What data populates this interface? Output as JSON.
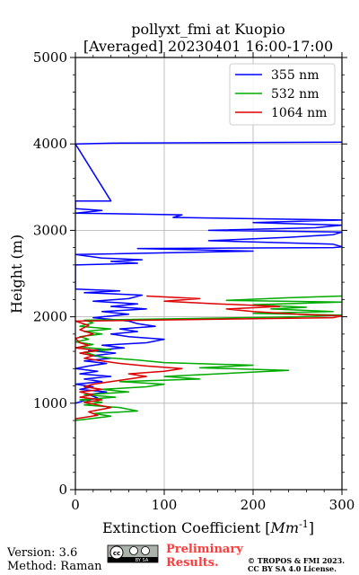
{
  "chart_data": {
    "type": "line",
    "title": "pollyxt_fmi at Kuopio",
    "subtitle": "[Averaged] 20230401 16:00-17:00",
    "xlabel": "Extinction Coefficient [",
    "xlabel_unit": "Mm",
    "xlabel_exp": "-1",
    "xlabel_end": "]",
    "ylabel": "Height (m)",
    "xlim": [
      0,
      300
    ],
    "ylim": [
      0,
      5000
    ],
    "x_ticks": [
      0,
      100,
      200,
      300
    ],
    "x_tick_labels": [
      "0",
      "100",
      "200",
      "300"
    ],
    "y_ticks": [
      0,
      1000,
      2000,
      3000,
      4000,
      5000
    ],
    "y_tick_labels": [
      "0",
      "1000",
      "2000",
      "3000",
      "4000",
      "5000"
    ],
    "grid": true,
    "legend_position": "top-right",
    "series": [
      {
        "name": "355 nm",
        "color": "#0000ff",
        "points": [
          [
            0,
            1000
          ],
          [
            10,
            1030
          ],
          [
            25,
            1060
          ],
          [
            15,
            1100
          ],
          [
            35,
            1130
          ],
          [
            5,
            1160
          ],
          [
            20,
            1190
          ],
          [
            0,
            1220
          ],
          [
            30,
            1250
          ],
          [
            10,
            1280
          ],
          [
            40,
            1310
          ],
          [
            5,
            1340
          ],
          [
            25,
            1370
          ],
          [
            0,
            1400
          ],
          [
            15,
            1430
          ],
          [
            35,
            1460
          ],
          [
            10,
            1490
          ],
          [
            40,
            1520
          ],
          [
            20,
            1550
          ],
          [
            45,
            1580
          ],
          [
            15,
            1610
          ],
          [
            55,
            1640
          ],
          [
            30,
            1670
          ],
          [
            80,
            1700
          ],
          [
            100,
            1740
          ],
          [
            60,
            1770
          ],
          [
            40,
            1800
          ],
          [
            70,
            1830
          ],
          [
            50,
            1860
          ],
          [
            90,
            1890
          ],
          [
            70,
            1920
          ],
          [
            60,
            1950
          ],
          [
            20,
            1990
          ],
          [
            60,
            2030
          ],
          [
            30,
            2060
          ],
          [
            80,
            2090
          ],
          [
            40,
            2120
          ],
          [
            70,
            2150
          ],
          [
            20,
            2180
          ],
          [
            60,
            2210
          ],
          [
            75,
            2250
          ],
          [
            10,
            2280
          ],
          [
            50,
            2300
          ],
          [
            0,
            2320
          ],
          [
            0,
            2600
          ],
          [
            70,
            2620
          ],
          [
            40,
            2640
          ],
          [
            75,
            2660
          ],
          [
            30,
            2680
          ],
          [
            0,
            2720
          ],
          [
            200,
            2760
          ],
          [
            70,
            2790
          ],
          [
            290,
            2800
          ],
          [
            300,
            2810
          ],
          [
            290,
            2840
          ],
          [
            150,
            2880
          ],
          [
            240,
            2920
          ],
          [
            290,
            2950
          ],
          [
            300,
            2980
          ],
          [
            150,
            3000
          ],
          [
            270,
            3030
          ],
          [
            300,
            3060
          ],
          [
            200,
            3090
          ],
          [
            300,
            3120
          ],
          [
            110,
            3150
          ],
          [
            120,
            3180
          ],
          [
            0,
            3200
          ],
          [
            30,
            3230
          ],
          [
            0,
            3250
          ],
          [
            0,
            3340
          ],
          [
            40,
            3340
          ],
          [
            0,
            4000
          ],
          [
            50,
            4010
          ],
          [
            300,
            4020
          ]
        ]
      },
      {
        "name": "532 nm",
        "color": "#00aa00",
        "points": [
          [
            0,
            800
          ],
          [
            40,
            850
          ],
          [
            20,
            880
          ],
          [
            70,
            910
          ],
          [
            50,
            950
          ],
          [
            10,
            980
          ],
          [
            30,
            1010
          ],
          [
            5,
            1040
          ],
          [
            45,
            1070
          ],
          [
            10,
            1100
          ],
          [
            60,
            1130
          ],
          [
            30,
            1160
          ],
          [
            80,
            1190
          ],
          [
            100,
            1220
          ],
          [
            50,
            1250
          ],
          [
            140,
            1280
          ],
          [
            100,
            1310
          ],
          [
            160,
            1340
          ],
          [
            240,
            1380
          ],
          [
            140,
            1410
          ],
          [
            200,
            1440
          ],
          [
            100,
            1470
          ],
          [
            70,
            1500
          ],
          [
            30,
            1530
          ],
          [
            20,
            1560
          ],
          [
            10,
            1590
          ],
          [
            40,
            1620
          ],
          [
            5,
            1650
          ],
          [
            20,
            1680
          ],
          [
            0,
            1710
          ],
          [
            15,
            1740
          ],
          [
            5,
            1770
          ],
          [
            30,
            1800
          ],
          [
            10,
            1830
          ],
          [
            40,
            1860
          ],
          [
            5,
            1890
          ],
          [
            20,
            1930
          ],
          [
            10,
            1960
          ],
          [
            250,
            2000
          ],
          [
            300,
            2020
          ],
          [
            200,
            2040
          ],
          [
            290,
            2060
          ],
          [
            220,
            2090
          ],
          [
            260,
            2110
          ],
          [
            200,
            2140
          ],
          [
            300,
            2170
          ],
          [
            170,
            2190
          ],
          [
            240,
            2220
          ],
          [
            300,
            2240
          ]
        ]
      },
      {
        "name": "1064 nm",
        "color": "#dd0000",
        "points": [
          [
            0,
            820
          ],
          [
            25,
            860
          ],
          [
            15,
            900
          ],
          [
            40,
            950
          ],
          [
            25,
            980
          ],
          [
            10,
            1010
          ],
          [
            30,
            1040
          ],
          [
            5,
            1070
          ],
          [
            20,
            1100
          ],
          [
            5,
            1130
          ],
          [
            30,
            1160
          ],
          [
            10,
            1190
          ],
          [
            20,
            1220
          ],
          [
            40,
            1250
          ],
          [
            60,
            1280
          ],
          [
            80,
            1310
          ],
          [
            60,
            1340
          ],
          [
            100,
            1370
          ],
          [
            120,
            1400
          ],
          [
            80,
            1430
          ],
          [
            50,
            1460
          ],
          [
            30,
            1490
          ],
          [
            10,
            1520
          ],
          [
            20,
            1550
          ],
          [
            5,
            1580
          ],
          [
            25,
            1610
          ],
          [
            0,
            1640
          ],
          [
            15,
            1670
          ],
          [
            5,
            1700
          ],
          [
            0,
            1750
          ],
          [
            20,
            1800
          ],
          [
            5,
            1850
          ],
          [
            15,
            1900
          ],
          [
            0,
            1950
          ],
          [
            290,
            1990
          ],
          [
            300,
            2010
          ],
          [
            250,
            2030
          ],
          [
            200,
            2060
          ],
          [
            170,
            2090
          ],
          [
            230,
            2120
          ],
          [
            160,
            2150
          ],
          [
            100,
            2180
          ],
          [
            140,
            2210
          ],
          [
            80,
            2240
          ]
        ]
      }
    ]
  },
  "footer": {
    "version": "Version: 3.6",
    "method": "Method: Raman",
    "preliminary_line1": "Preliminary",
    "preliminary_line2": "Results.",
    "copyright_line1": "© TROPOS & FMI 2023.",
    "copyright_line2": "CC BY SA 4.0 License.",
    "badge_text": "BY SA"
  }
}
